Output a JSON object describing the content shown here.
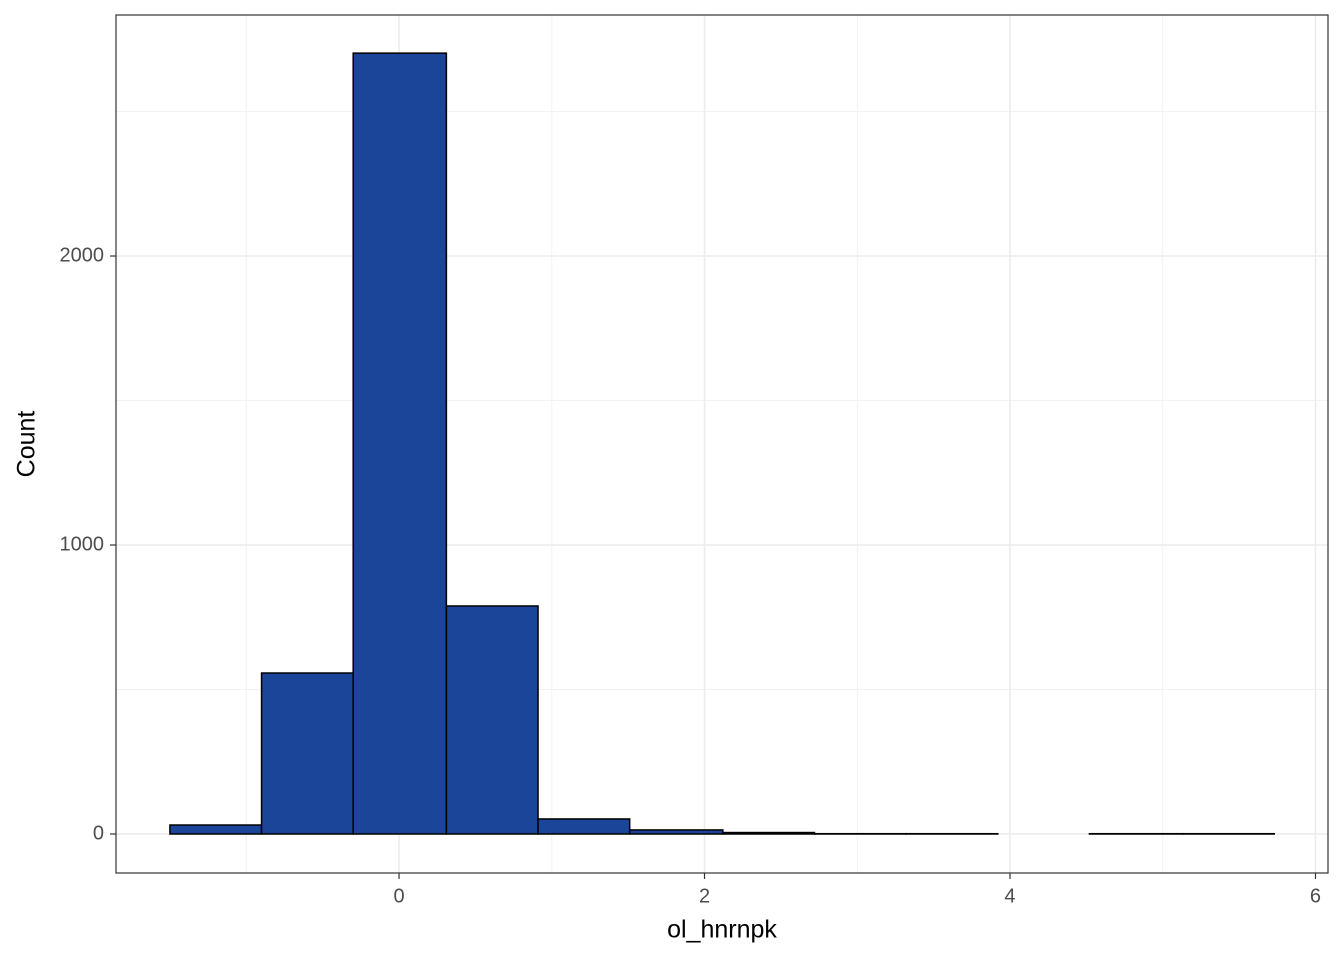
{
  "chart_data": {
    "type": "histogram",
    "x_label": "ol_hnrnpk",
    "y_label": "Count",
    "bins": [
      -1.5,
      -0.9,
      -0.3,
      0.31,
      0.91,
      1.51,
      2.12,
      2.72,
      3.32,
      3.92,
      4.52,
      5.13,
      5.73
    ],
    "counts": [
      31,
      557,
      2702,
      789,
      52,
      14,
      5,
      1,
      1,
      0,
      1,
      1
    ],
    "color": "#1a4599",
    "edge_color": "#000000",
    "xlim": [
      -1.853,
      6.082
    ],
    "ylim": [
      -135,
      2834
    ],
    "xticks": [
      0,
      2,
      4,
      6
    ],
    "yticks": [
      0,
      1000,
      2000
    ],
    "x_minor_grid": [
      -1,
      1,
      3,
      5
    ],
    "y_minor_grid": [
      500,
      1500,
      2500
    ],
    "grid": true
  }
}
